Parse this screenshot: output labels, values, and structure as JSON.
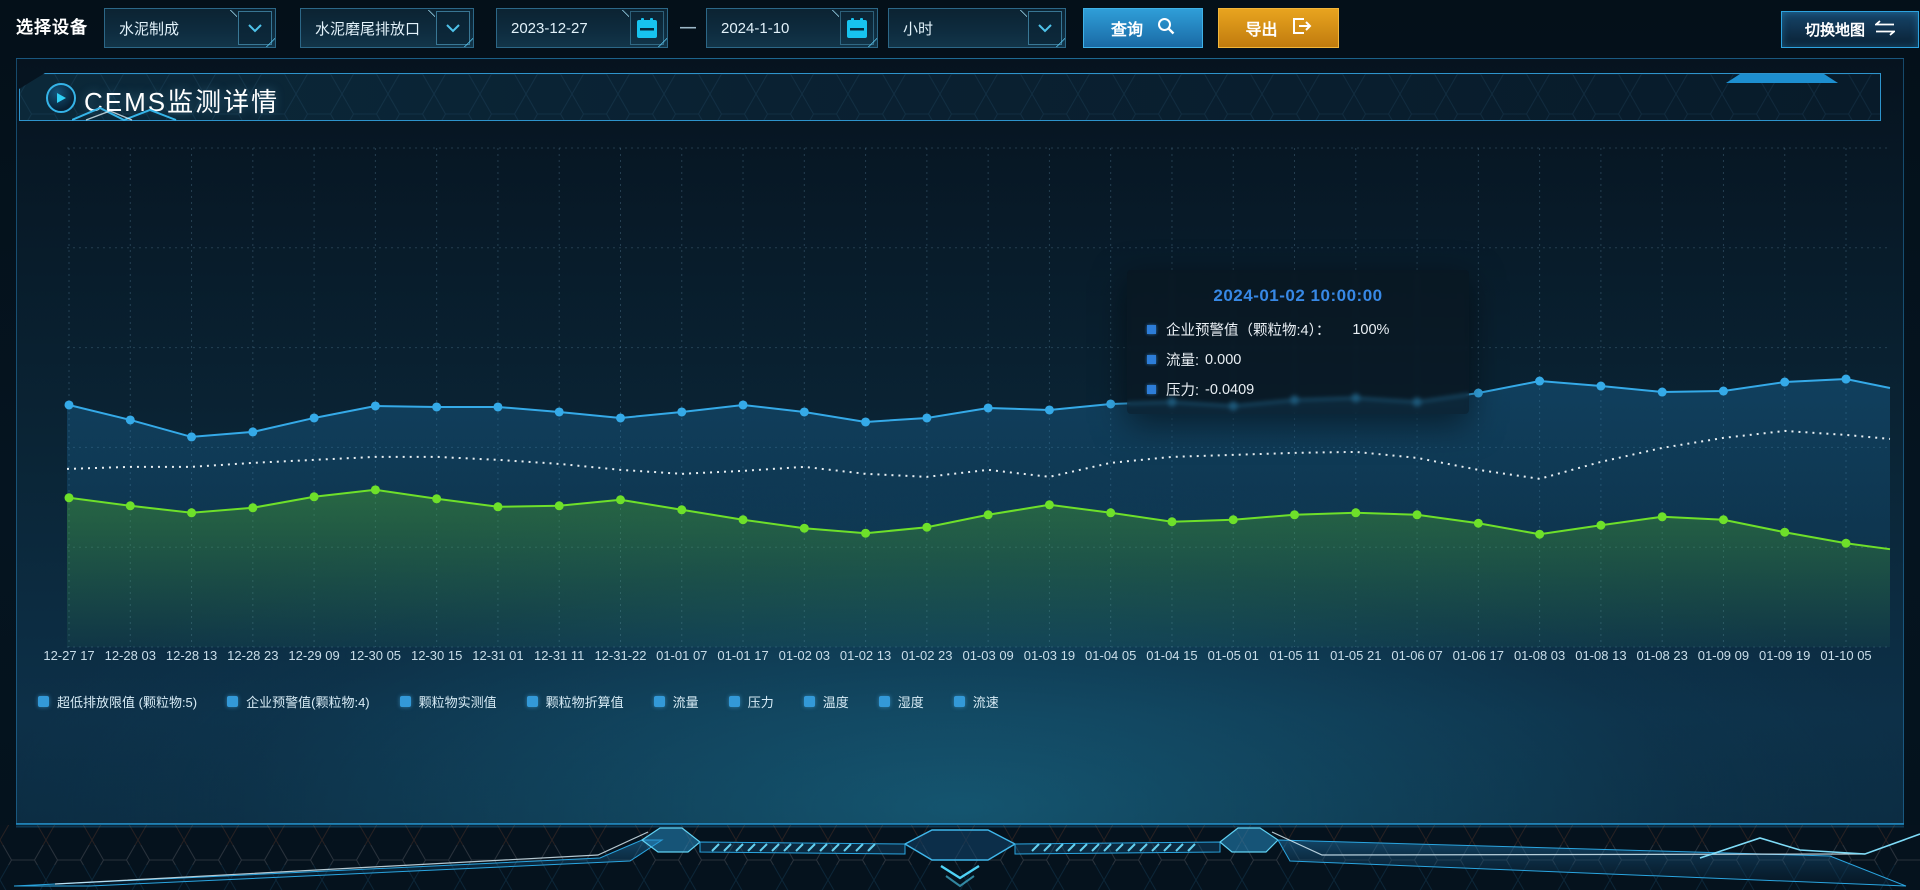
{
  "toolbar": {
    "device_label": "选择设备",
    "selects": [
      {
        "value": "水泥制成"
      },
      {
        "value": "水泥磨尾排放口"
      },
      {
        "value": "小时"
      }
    ],
    "date_start": "2023-12-27",
    "date_separator": "—",
    "date_end": "2024-1-10",
    "query_button": "查询",
    "export_button": "导出",
    "switch_map_button": "切换地图"
  },
  "panel": {
    "title": "CEMS监测详情"
  },
  "tooltip": {
    "title": "2024-01-02 10:00:00",
    "rows": [
      {
        "label": "企业预警值（颗粒物:4）：",
        "value": "100%",
        "wide_gap": true
      },
      {
        "label": "流量:",
        "value": "0.000",
        "wide_gap": false
      },
      {
        "label": "压力:",
        "value": "-0.0409",
        "wide_gap": false
      }
    ]
  },
  "chart_data": {
    "type": "line",
    "title": "",
    "xlabel": "",
    "ylabel": "",
    "grid": true,
    "legend_position": "bottom",
    "note": "y-axis has no visible tick labels; series values are relative heights (0-100 of plot height) estimated from pixels",
    "ylim": [
      0,
      100
    ],
    "categories": [
      "12-27 17",
      "12-28 03",
      "12-28 13",
      "12-28 23",
      "12-29 09",
      "12-30 05",
      "12-30 15",
      "12-31 01",
      "12-31 11",
      "12-31-22",
      "01-01 07",
      "01-01 17",
      "01-02 03",
      "01-02 13",
      "01-02 23",
      "01-03 09",
      "01-03 19",
      "01-04 05",
      "01-04 15",
      "01-05 01",
      "01-05 11",
      "01-05 21",
      "01-06 07",
      "01-06 17",
      "01-08 03",
      "01-08 13",
      "01-08 23",
      "01-09 09",
      "01-09 19",
      "01-10 05"
    ],
    "series": [
      {
        "name": "企业预警值(颗粒物:4)",
        "color": "#35aae8",
        "line": "solid",
        "markers": true,
        "area": true,
        "area_color": "#1e7ab4",
        "values": [
          48.5,
          45.5,
          42.1,
          43.1,
          45.9,
          48.3,
          48.1,
          48.1,
          47.1,
          45.9,
          47.1,
          48.5,
          47.1,
          45.1,
          45.9,
          47.9,
          47.5,
          48.7,
          49.1,
          48.3,
          49.5,
          49.9,
          49.1,
          50.9,
          53.3,
          52.3,
          51.1,
          51.3,
          53.1,
          53.7
        ],
        "edge_value": 51.9
      },
      {
        "name": "流量",
        "color": "#e8eff3",
        "line": "dotted",
        "markers": false,
        "area": false,
        "area_color": "",
        "values": [
          35.7,
          36.1,
          36.1,
          36.9,
          37.5,
          38.1,
          38.1,
          37.5,
          36.7,
          35.5,
          34.7,
          35.3,
          36.1,
          34.7,
          34.1,
          35.5,
          34.1,
          36.9,
          38.1,
          38.5,
          38.9,
          39.1,
          37.9,
          35.5,
          33.7,
          37.1,
          39.9,
          41.9,
          43.3,
          42.5
        ],
        "edge_value": 41.7
      },
      {
        "name": "压力",
        "color": "#6ee02a",
        "line": "solid",
        "markers": true,
        "area": true,
        "area_color": "#58c224",
        "values": [
          29.9,
          28.3,
          26.9,
          27.9,
          30.1,
          31.5,
          29.7,
          28.1,
          28.3,
          29.5,
          27.5,
          25.5,
          23.8,
          22.8,
          24.0,
          26.5,
          28.5,
          26.9,
          25.1,
          25.5,
          26.5,
          26.9,
          26.5,
          24.8,
          22.6,
          24.4,
          26.1,
          25.5,
          23.0,
          20.8
        ],
        "edge_value": 19.6
      }
    ],
    "legend": [
      "超低排放限值 (颗粒物:5)",
      "企业预警值(颗粒物:4)",
      "颗粒物实测值",
      "颗粒物折算值",
      "流量",
      "压力",
      "温度",
      "湿度",
      "流速"
    ]
  },
  "colors": {
    "accent_cyan": "#2da3e0",
    "button_blue": "#1f86bf",
    "button_orange": "#d8921a",
    "tooltip_title_blue": "#3788e5",
    "legend_marker_blue": "#3399d8"
  }
}
